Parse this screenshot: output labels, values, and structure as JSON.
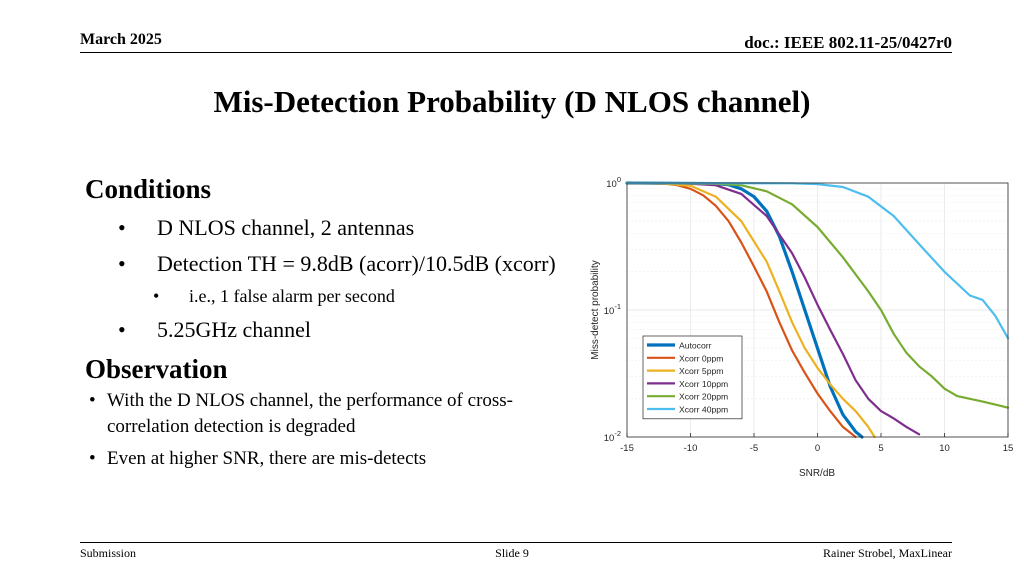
{
  "header": {
    "date": "March 2025",
    "doc": "doc.: IEEE 802.11-25/0427r0"
  },
  "title": "Mis-Detection Probability (D NLOS channel)",
  "conditions": {
    "heading": "Conditions",
    "bullets": [
      "D NLOS channel, 2 antennas",
      "Detection TH = 9.8dB (acorr)/10.5dB (xcorr)",
      "i.e., 1 false alarm per second",
      "5.25GHz channel"
    ]
  },
  "observation": {
    "heading": "Observation",
    "bullets": [
      "With the D NLOS channel, the performance of cross-correlation detection is degraded",
      "Even at higher SNR, there are mis-detects"
    ]
  },
  "bullet_glyph": "•",
  "footer": {
    "left": "Submission",
    "center": "Slide 9",
    "right": "Rainer Strobel, MaxLinear"
  },
  "chart_data": {
    "type": "line",
    "xlabel": "SNR/dB",
    "ylabel": "Miss-detect probability",
    "xlim": [
      -15,
      15
    ],
    "ylim": [
      0.01,
      1
    ],
    "yscale": "log",
    "xticks": [
      -15,
      -10,
      -5,
      0,
      5,
      10,
      15
    ],
    "ytick_labels": [
      {
        "base": "10",
        "exp": "0",
        "value": 1
      },
      {
        "base": "10",
        "exp": "-1",
        "value": 0.1
      },
      {
        "base": "10",
        "exp": "-2",
        "value": 0.01
      }
    ],
    "grid": true,
    "legend_position": "bottom-left",
    "series": [
      {
        "name": "Autocorr",
        "color": "#0072bd",
        "bold": true,
        "x": [
          -15,
          -8,
          -7,
          -6,
          -5,
          -4,
          -3,
          -2,
          -1,
          0,
          1,
          2,
          3,
          3.5
        ],
        "y": [
          1,
          0.99,
          0.97,
          0.9,
          0.78,
          0.6,
          0.38,
          0.2,
          0.1,
          0.05,
          0.025,
          0.015,
          0.011,
          0.01
        ]
      },
      {
        "name": "Xcorr 0ppm",
        "color": "#d95319",
        "x": [
          -15,
          -12,
          -11,
          -10,
          -9,
          -8,
          -7,
          -6,
          -5,
          -4,
          -3,
          -2,
          -1,
          0,
          1,
          2,
          3
        ],
        "y": [
          1,
          0.99,
          0.96,
          0.9,
          0.8,
          0.66,
          0.5,
          0.34,
          0.22,
          0.14,
          0.08,
          0.048,
          0.032,
          0.022,
          0.016,
          0.012,
          0.01
        ]
      },
      {
        "name": "Xcorr 5ppm",
        "color": "#edb120",
        "x": [
          -15,
          -12,
          -10,
          -8,
          -6,
          -4,
          -3,
          -2,
          -1,
          0,
          1,
          2,
          3,
          4,
          4.5
        ],
        "y": [
          1,
          0.99,
          0.95,
          0.78,
          0.5,
          0.24,
          0.14,
          0.08,
          0.05,
          0.035,
          0.026,
          0.02,
          0.016,
          0.012,
          0.01
        ]
      },
      {
        "name": "Xcorr 10ppm",
        "color": "#7e2f8e",
        "x": [
          -15,
          -10,
          -8,
          -6,
          -4,
          -2,
          -1,
          0,
          1,
          2,
          3,
          4,
          5,
          6,
          7,
          8
        ],
        "y": [
          1,
          0.99,
          0.96,
          0.82,
          0.55,
          0.28,
          0.18,
          0.11,
          0.07,
          0.045,
          0.028,
          0.02,
          0.016,
          0.014,
          0.012,
          0.0105
        ]
      },
      {
        "name": "Xcorr 20ppm",
        "color": "#77ac30",
        "x": [
          -15,
          -8,
          -6,
          -4,
          -2,
          0,
          2,
          4,
          5,
          6,
          7,
          8,
          9,
          10,
          11,
          12,
          13,
          14,
          15
        ],
        "y": [
          1,
          0.99,
          0.96,
          0.86,
          0.68,
          0.45,
          0.26,
          0.14,
          0.1,
          0.065,
          0.046,
          0.036,
          0.03,
          0.024,
          0.021,
          0.02,
          0.019,
          0.018,
          0.017
        ]
      },
      {
        "name": "Xcorr 40ppm",
        "color": "#4dbeee",
        "x": [
          -15,
          -2,
          0,
          2,
          4,
          6,
          8,
          10,
          12,
          13,
          14,
          15
        ],
        "y": [
          1,
          0.995,
          0.98,
          0.93,
          0.78,
          0.55,
          0.33,
          0.2,
          0.13,
          0.12,
          0.09,
          0.06
        ]
      }
    ]
  }
}
